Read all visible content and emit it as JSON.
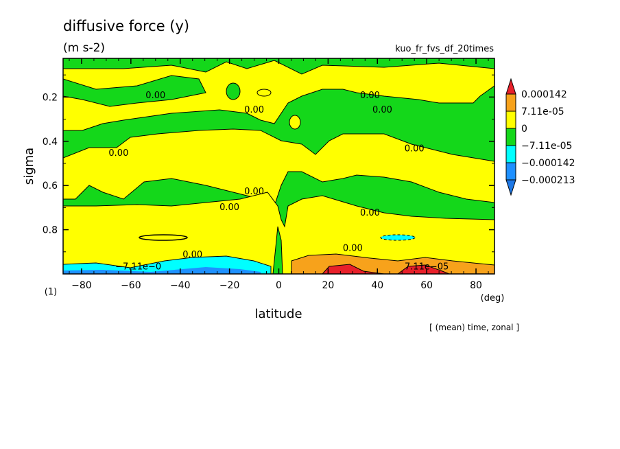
{
  "chart_data": {
    "type": "heatmap",
    "title": "diffusive force (y)",
    "units": "(m s-2)",
    "run_name": "kuo_fr_fvs_df_20times",
    "xlabel": "latitude",
    "xunit": "(deg)",
    "ylabel": "sigma",
    "yunit": "(1)",
    "averaging_note": "[ (mean) time, zonal ]",
    "xlim": [
      -87.5,
      87.5
    ],
    "ylim": [
      1.0,
      0.025
    ],
    "x_ticks": [
      -80,
      -60,
      -40,
      -20,
      0,
      20,
      40,
      60,
      80
    ],
    "y_ticks": [
      0.2,
      0.4,
      0.6,
      0.8
    ],
    "x_tick_labels": [
      "−80",
      "−60",
      "−40",
      "−20",
      "0",
      "20",
      "40",
      "60",
      "80"
    ],
    "y_tick_labels": [
      "0.2",
      "0.4",
      "0.6",
      "0.8"
    ],
    "legend": {
      "placement": "right",
      "levels": [
        "0.000142",
        "7.11e-05",
        "0",
        "−7.11e-05",
        "−0.000142",
        "−0.000213"
      ],
      "colors": [
        "#e8202a",
        "#f7a21b",
        "#ffff00",
        "#14d71a",
        "#00ffff",
        "#1e90ff",
        "#1e78e6"
      ]
    },
    "contour_labels": [
      {
        "text": "0.00",
        "x": -50,
        "y": 0.19
      },
      {
        "text": "0.00",
        "x": -10,
        "y": 0.255
      },
      {
        "text": "0.00",
        "x": 37,
        "y": 0.19
      },
      {
        "text": "0.00",
        "x": 42,
        "y": 0.255
      },
      {
        "text": "0.00",
        "x": 55,
        "y": 0.43
      },
      {
        "text": "0.00",
        "x": -65,
        "y": 0.45
      },
      {
        "text": "0.00",
        "x": -10,
        "y": 0.625
      },
      {
        "text": "0.00",
        "x": -20,
        "y": 0.695
      },
      {
        "text": "0.00",
        "x": 37,
        "y": 0.72
      },
      {
        "text": "0.00",
        "x": -35,
        "y": 0.91
      },
      {
        "text": "0.00",
        "x": 30,
        "y": 0.88
      },
      {
        "text": "−7.11e−0",
        "x": -57,
        "y": 0.965
      },
      {
        "text": "7.11e−05",
        "x": 60,
        "y": 0.965
      }
    ],
    "bands": [
      {
        "level": "0",
        "sigma_range": [
          0.025,
          0.1
        ],
        "description": "green band at top"
      },
      {
        "level": "0",
        "sigma_range": [
          0.1,
          0.34
        ],
        "description": "yellow band"
      },
      {
        "level": "−7.11e-05",
        "sigma_range": [
          0.2,
          0.5
        ],
        "description": "green band"
      },
      {
        "level": "0",
        "sigma_range": [
          0.45,
          0.65
        ],
        "description": "yellow band"
      },
      {
        "level": "−7.11e-05",
        "sigma_range": [
          0.55,
          0.82
        ],
        "description": "green band"
      },
      {
        "level": "0",
        "sigma_range": [
          0.7,
          0.95
        ],
        "description": "yellow band"
      },
      {
        "level": "−0.000142",
        "sigma_range": [
          0.93,
          1.0
        ],
        "x_range": [
          -87.5,
          -5
        ],
        "description": "cyan/blue near surface, southern hemisphere"
      },
      {
        "level": "0.000142",
        "sigma_range": [
          0.92,
          1.0
        ],
        "x_range": [
          5,
          87.5
        ],
        "description": "orange/red near surface, northern hemisphere"
      }
    ]
  }
}
